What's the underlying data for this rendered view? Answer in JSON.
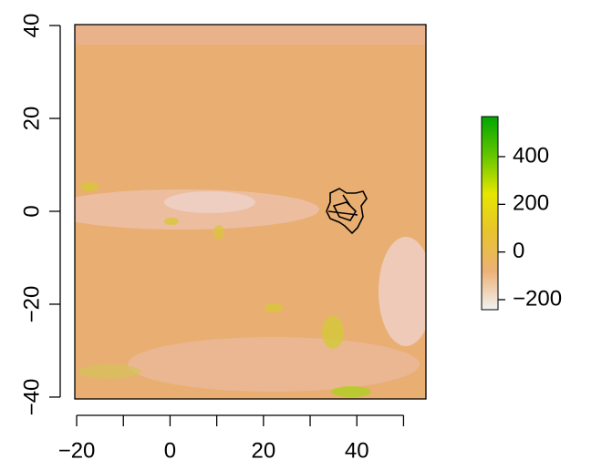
{
  "chart_data": {
    "type": "raster",
    "xlim": [
      -20.4,
      54.8
    ],
    "ylim": [
      -40.4,
      40.2
    ],
    "xticks": [
      {
        "value": -20,
        "label": "−20"
      },
      0,
      20,
      40
    ],
    "xminor_ticks": [
      -10,
      10,
      30,
      50
    ],
    "yticks": [
      {
        "value": -40,
        "label": "−40"
      },
      {
        "value": -20,
        "label": "−20"
      },
      0,
      20,
      40
    ],
    "legend": {
      "zlim": [
        -242,
        568
      ],
      "ticks": [
        {
          "value": -200,
          "label": "−200"
        },
        0,
        200,
        400
      ],
      "colors": [
        "#f2f2f2",
        "#ecb176",
        "#e8c32e",
        "#e6e600",
        "#63c600",
        "#00a600"
      ]
    }
  }
}
